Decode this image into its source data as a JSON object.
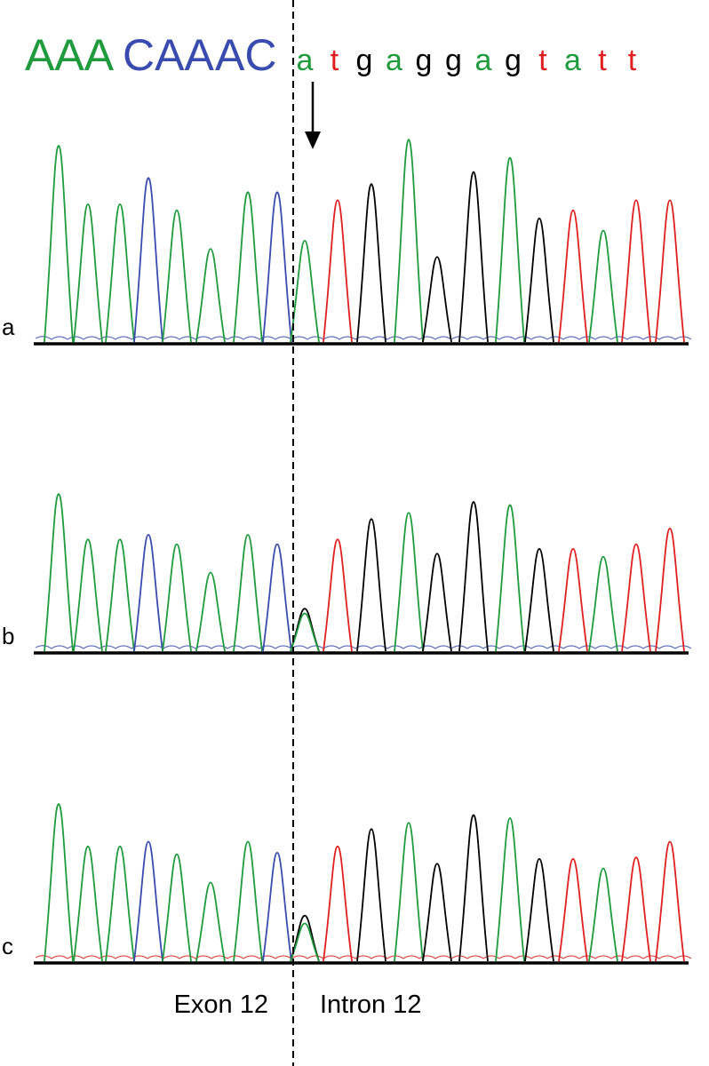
{
  "colors": {
    "A": "#1f9a3d",
    "C": "#3a4bb0",
    "G": "#000000",
    "T": "#e02020"
  },
  "exon_sequence": [
    {
      "text": "AAA",
      "base": "A"
    },
    {
      "text": "CAA",
      "base": "C"
    },
    {
      "text": "AC",
      "base": "C"
    }
  ],
  "intron_sequence": [
    "a",
    "t",
    "g",
    "a",
    "g",
    "g",
    "a",
    "g",
    "t",
    "a",
    "t",
    "t"
  ],
  "arrow_icon": "down-arrow-icon",
  "panels": [
    {
      "label": "a",
      "peaks": [
        {
          "base": "A",
          "h": 0.97
        },
        {
          "base": "A",
          "h": 0.68
        },
        {
          "base": "A",
          "h": 0.68
        },
        {
          "base": "C",
          "h": 0.81
        },
        {
          "base": "A",
          "h": 0.65
        },
        {
          "base": "A",
          "h": 0.46
        },
        {
          "base": "A",
          "h": 0.74
        },
        {
          "base": "C",
          "h": 0.74
        },
        {
          "base": "A",
          "h": 0.5
        },
        {
          "base": "T",
          "h": 0.7
        },
        {
          "base": "G",
          "h": 0.78
        },
        {
          "base": "A",
          "h": 1.0
        },
        {
          "base": "G",
          "h": 0.42
        },
        {
          "base": "G",
          "h": 0.84
        },
        {
          "base": "A",
          "h": 0.91
        },
        {
          "base": "G",
          "h": 0.61
        },
        {
          "base": "T",
          "h": 0.65
        },
        {
          "base": "A",
          "h": 0.55
        },
        {
          "base": "T",
          "h": 0.7
        },
        {
          "base": "T",
          "h": 0.7
        }
      ]
    },
    {
      "label": "b",
      "peaks": [
        {
          "base": "A",
          "h": 1.0
        },
        {
          "base": "A",
          "h": 0.71
        },
        {
          "base": "A",
          "h": 0.71
        },
        {
          "base": "C",
          "h": 0.74
        },
        {
          "base": "A",
          "h": 0.68
        },
        {
          "base": "A",
          "h": 0.5
        },
        {
          "base": "A",
          "h": 0.74
        },
        {
          "base": "C",
          "h": 0.68
        },
        {
          "base": "G",
          "h": 0.27
        },
        {
          "base": "T",
          "h": 0.71
        },
        {
          "base": "G",
          "h": 0.84
        },
        {
          "base": "A",
          "h": 0.88
        },
        {
          "base": "G",
          "h": 0.62
        },
        {
          "base": "G",
          "h": 0.95
        },
        {
          "base": "A",
          "h": 0.93
        },
        {
          "base": "G",
          "h": 0.65
        },
        {
          "base": "T",
          "h": 0.65
        },
        {
          "base": "A",
          "h": 0.6
        },
        {
          "base": "T",
          "h": 0.68
        },
        {
          "base": "T",
          "h": 0.78
        }
      ]
    },
    {
      "label": "c",
      "peaks": [
        {
          "base": "A",
          "h": 1.0
        },
        {
          "base": "A",
          "h": 0.73
        },
        {
          "base": "A",
          "h": 0.73
        },
        {
          "base": "C",
          "h": 0.76
        },
        {
          "base": "A",
          "h": 0.68
        },
        {
          "base": "A",
          "h": 0.5
        },
        {
          "base": "A",
          "h": 0.76
        },
        {
          "base": "C",
          "h": 0.69
        },
        {
          "base": "G",
          "h": 0.29
        },
        {
          "base": "T",
          "h": 0.73
        },
        {
          "base": "G",
          "h": 0.84
        },
        {
          "base": "A",
          "h": 0.88
        },
        {
          "base": "G",
          "h": 0.62
        },
        {
          "base": "G",
          "h": 0.93
        },
        {
          "base": "A",
          "h": 0.91
        },
        {
          "base": "G",
          "h": 0.65
        },
        {
          "base": "T",
          "h": 0.65
        },
        {
          "base": "A",
          "h": 0.59
        },
        {
          "base": "T",
          "h": 0.66
        },
        {
          "base": "T",
          "h": 0.76
        }
      ]
    }
  ],
  "region_labels": {
    "exon": "Exon 12",
    "intron": "Intron 12"
  }
}
